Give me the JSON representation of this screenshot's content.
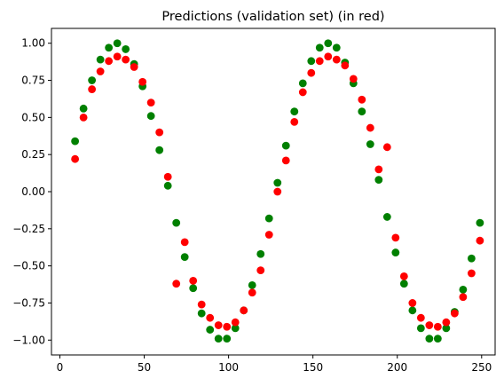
{
  "chart_data": {
    "type": "scatter",
    "title": "Predictions (validation set) (in red)",
    "xlabel": "",
    "ylabel": "",
    "xlim": [
      -5,
      258
    ],
    "ylim": [
      -1.1,
      1.1
    ],
    "x_ticks": [
      0,
      50,
      100,
      150,
      200,
      250
    ],
    "x_tick_labels": [
      "0",
      "50",
      "100",
      "150",
      "200",
      "250"
    ],
    "y_ticks": [
      -1.0,
      -0.75,
      -0.5,
      -0.25,
      0.0,
      0.25,
      0.5,
      0.75,
      1.0
    ],
    "y_tick_labels": [
      "−1.00",
      "−0.75",
      "−0.50",
      "−0.25",
      "0.00",
      "0.25",
      "0.50",
      "0.75",
      "1.00"
    ],
    "grid": false,
    "series": [
      {
        "color": "#008000",
        "points": [
          [
            9,
            0.34
          ],
          [
            14,
            0.56
          ],
          [
            19,
            0.75
          ],
          [
            24,
            0.89
          ],
          [
            29,
            0.97
          ],
          [
            34,
            1.0
          ],
          [
            39,
            0.96
          ],
          [
            44,
            0.86
          ],
          [
            49,
            0.71
          ],
          [
            54,
            0.51
          ],
          [
            59,
            0.28
          ],
          [
            64,
            0.04
          ],
          [
            69,
            -0.21
          ],
          [
            74,
            -0.44
          ],
          [
            79,
            -0.65
          ],
          [
            84,
            -0.82
          ],
          [
            89,
            -0.93
          ],
          [
            94,
            -0.99
          ],
          [
            99,
            -0.99
          ],
          [
            104,
            -0.92
          ],
          [
            109,
            -0.8
          ],
          [
            114,
            -0.63
          ],
          [
            119,
            -0.42
          ],
          [
            124,
            -0.18
          ],
          [
            129,
            0.06
          ],
          [
            134,
            0.31
          ],
          [
            139,
            0.54
          ],
          [
            144,
            0.73
          ],
          [
            149,
            0.88
          ],
          [
            154,
            0.97
          ],
          [
            159,
            1.0
          ],
          [
            164,
            0.97
          ],
          [
            169,
            0.87
          ],
          [
            174,
            0.73
          ],
          [
            179,
            0.54
          ],
          [
            184,
            0.32
          ],
          [
            189,
            0.08
          ],
          [
            194,
            -0.17
          ],
          [
            199,
            -0.41
          ],
          [
            204,
            -0.62
          ],
          [
            209,
            -0.8
          ],
          [
            214,
            -0.92
          ],
          [
            219,
            -0.99
          ],
          [
            224,
            -0.99
          ],
          [
            229,
            -0.92
          ],
          [
            234,
            -0.81
          ],
          [
            239,
            -0.66
          ],
          [
            244,
            -0.45
          ],
          [
            249,
            -0.21
          ]
        ]
      },
      {
        "color": "#ff0000",
        "points": [
          [
            9,
            0.22
          ],
          [
            14,
            0.5
          ],
          [
            19,
            0.69
          ],
          [
            24,
            0.81
          ],
          [
            29,
            0.88
          ],
          [
            34,
            0.91
          ],
          [
            39,
            0.89
          ],
          [
            44,
            0.84
          ],
          [
            49,
            0.74
          ],
          [
            54,
            0.6
          ],
          [
            59,
            0.4
          ],
          [
            64,
            0.1
          ],
          [
            69,
            -0.62
          ],
          [
            74,
            -0.34
          ],
          [
            79,
            -0.6
          ],
          [
            84,
            -0.76
          ],
          [
            89,
            -0.85
          ],
          [
            94,
            -0.9
          ],
          [
            99,
            -0.91
          ],
          [
            104,
            -0.88
          ],
          [
            109,
            -0.8
          ],
          [
            114,
            -0.68
          ],
          [
            119,
            -0.53
          ],
          [
            124,
            -0.29
          ],
          [
            129,
            0.0
          ],
          [
            134,
            0.21
          ],
          [
            139,
            0.47
          ],
          [
            144,
            0.67
          ],
          [
            149,
            0.8
          ],
          [
            154,
            0.88
          ],
          [
            159,
            0.91
          ],
          [
            164,
            0.89
          ],
          [
            169,
            0.85
          ],
          [
            174,
            0.76
          ],
          [
            179,
            0.62
          ],
          [
            184,
            0.43
          ],
          [
            189,
            0.15
          ],
          [
            194,
            0.3
          ],
          [
            199,
            -0.31
          ],
          [
            204,
            -0.57
          ],
          [
            209,
            -0.75
          ],
          [
            214,
            -0.85
          ],
          [
            219,
            -0.9
          ],
          [
            224,
            -0.91
          ],
          [
            229,
            -0.88
          ],
          [
            234,
            -0.82
          ],
          [
            239,
            -0.71
          ],
          [
            244,
            -0.55
          ],
          [
            249,
            -0.33
          ]
        ]
      }
    ]
  }
}
